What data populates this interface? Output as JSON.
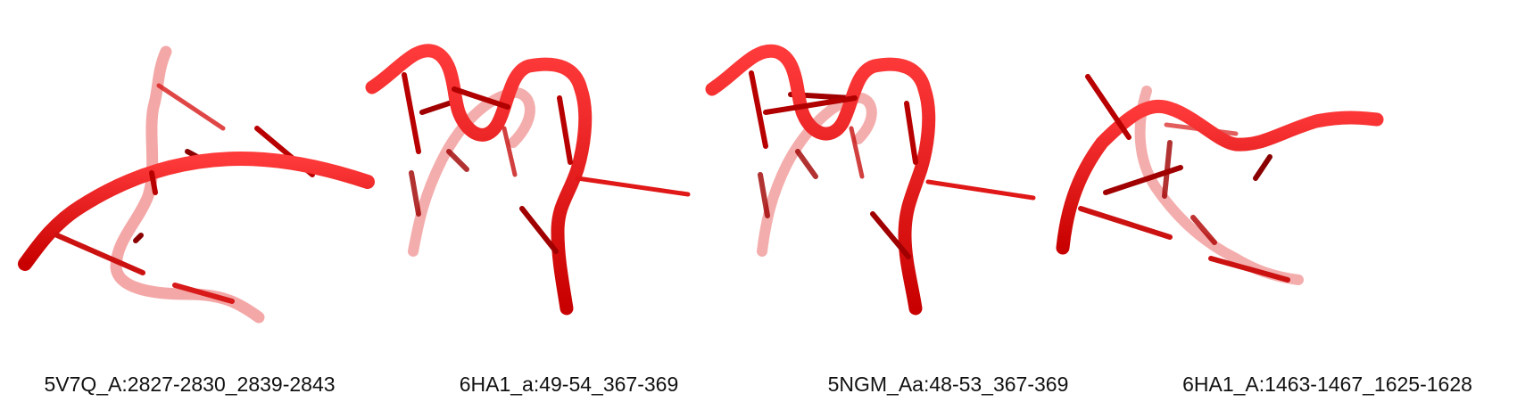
{
  "colors": {
    "backbone": "#ee1111",
    "stick": "#cc1111",
    "shadow": "#8a0000",
    "background": "#ffffff"
  },
  "panels": [
    {
      "label": "5V7Q_A:2827-2830_2839-2843"
    },
    {
      "label": "6HA1_a:49-54_367-369"
    },
    {
      "label": "5NGM_Aa:48-53_367-369"
    },
    {
      "label": "6HA1_A:1463-1467_1625-1628"
    }
  ]
}
